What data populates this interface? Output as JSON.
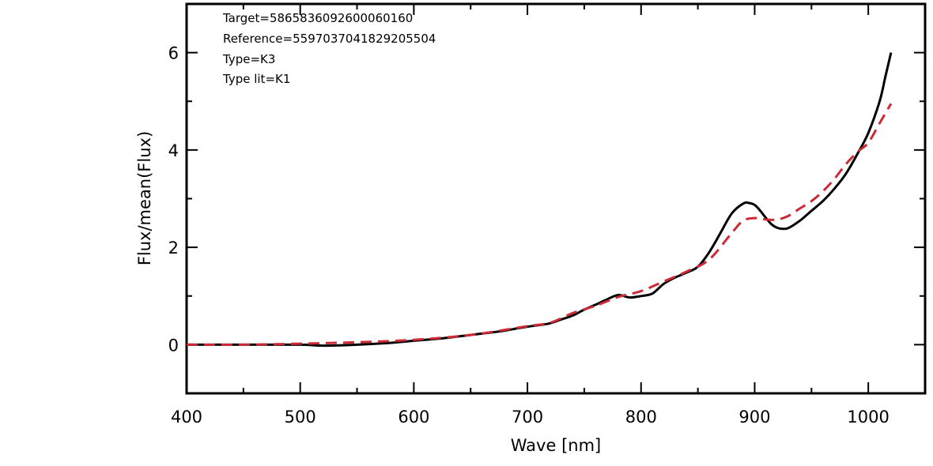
{
  "chart_data": {
    "type": "line",
    "xlabel": "Wave [nm]",
    "ylabel": "Flux/mean(Flux)",
    "xlim": [
      400,
      1050
    ],
    "ylim": [
      -1,
      7
    ],
    "x_ticks": [
      400,
      500,
      600,
      700,
      800,
      900,
      1000
    ],
    "x_tick_labels": [
      "400",
      "500",
      "600",
      "700",
      "800",
      "900",
      "1000"
    ],
    "y_ticks": [
      0,
      2,
      4,
      6
    ],
    "y_tick_labels": [
      "0",
      "2",
      "4",
      "6"
    ],
    "grid": false,
    "annotations": [
      "Target=5865836092600060160",
      "Reference=5597037041829205504",
      "Type=K3",
      "Type lit=K1"
    ],
    "series": [
      {
        "style": "solid",
        "color": "#000000",
        "x": [
          400,
          450,
          500,
          520,
          550,
          575,
          600,
          625,
          650,
          675,
          690,
          700,
          710,
          720,
          730,
          740,
          750,
          760,
          770,
          780,
          790,
          800,
          810,
          820,
          830,
          840,
          850,
          860,
          870,
          880,
          890,
          895,
          900,
          905,
          910,
          915,
          920,
          925,
          930,
          940,
          950,
          960,
          970,
          980,
          990,
          1000,
          1010,
          1015,
          1020
        ],
        "y": [
          0,
          0,
          0,
          -0.02,
          0,
          0.03,
          0.08,
          0.13,
          0.2,
          0.27,
          0.33,
          0.37,
          0.4,
          0.44,
          0.52,
          0.6,
          0.72,
          0.82,
          0.93,
          1.02,
          0.97,
          1.0,
          1.05,
          1.25,
          1.38,
          1.48,
          1.6,
          1.9,
          2.3,
          2.7,
          2.9,
          2.91,
          2.87,
          2.75,
          2.6,
          2.47,
          2.4,
          2.38,
          2.4,
          2.55,
          2.75,
          2.95,
          3.2,
          3.5,
          3.9,
          4.35,
          5.0,
          5.5,
          6.0
        ]
      },
      {
        "style": "dashed",
        "color": "#cc2a36",
        "x": [
          400,
          450,
          500,
          550,
          600,
          650,
          700,
          720,
          740,
          760,
          780,
          800,
          820,
          840,
          860,
          880,
          890,
          900,
          910,
          920,
          930,
          940,
          950,
          960,
          970,
          980,
          990,
          1000,
          1010,
          1020
        ],
        "y": [
          0,
          0,
          0.02,
          0.05,
          0.1,
          0.2,
          0.38,
          0.45,
          0.65,
          0.8,
          0.98,
          1.1,
          1.3,
          1.5,
          1.75,
          2.3,
          2.55,
          2.6,
          2.57,
          2.57,
          2.65,
          2.8,
          2.95,
          3.15,
          3.4,
          3.7,
          3.95,
          4.15,
          4.55,
          4.95
        ]
      }
    ]
  }
}
